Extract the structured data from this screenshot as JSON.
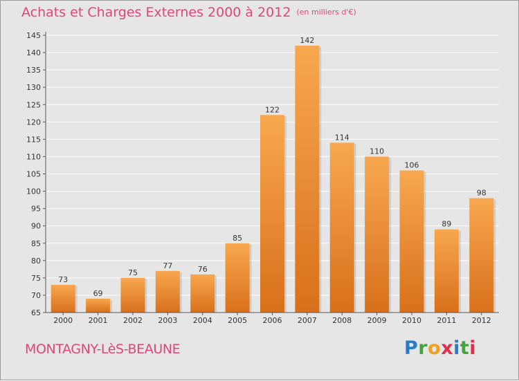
{
  "header": {
    "title": "Achats et Charges Externes 2000 à 2012",
    "subtitle": "(en milliers d'€)"
  },
  "footer": {
    "town": "MONTAGNY-LèS-BEAUNE",
    "brand_letters": [
      {
        "char": "P",
        "color": "#2b7cc4"
      },
      {
        "char": "r",
        "color": "#47a23f"
      },
      {
        "char": "o",
        "color": "#f0a020"
      },
      {
        "char": "x",
        "color": "#e0304a"
      },
      {
        "char": "i",
        "color": "#2b7cc4"
      },
      {
        "char": "t",
        "color": "#47a23f"
      },
      {
        "char": "i",
        "color": "#e0304a"
      }
    ]
  },
  "chart_data": {
    "type": "bar",
    "title": "Achats et Charges Externes 2000 à 2012",
    "subtitle": "(en milliers d'€)",
    "categories": [
      "2000",
      "2001",
      "2002",
      "2003",
      "2004",
      "2005",
      "2006",
      "2007",
      "2008",
      "2009",
      "2010",
      "2011",
      "2012"
    ],
    "values": [
      73,
      69,
      75,
      77,
      76,
      85,
      122,
      142,
      114,
      110,
      106,
      89,
      98
    ],
    "value_labels": [
      "73",
      "69",
      "75",
      "77",
      "76",
      "85",
      "122",
      "142",
      "114",
      "110",
      "106",
      "89",
      "98"
    ],
    "ylim": [
      65,
      145
    ],
    "yticks": [
      65,
      70,
      75,
      80,
      85,
      90,
      95,
      100,
      105,
      110,
      115,
      120,
      125,
      130,
      135,
      140,
      145
    ],
    "xlabel": "",
    "ylabel": "",
    "grid": true,
    "colors": {
      "bar_top": "#f8a850",
      "bar_bottom": "#d8701a",
      "grid": "#ffffff",
      "background": "#e6e6e6"
    }
  }
}
